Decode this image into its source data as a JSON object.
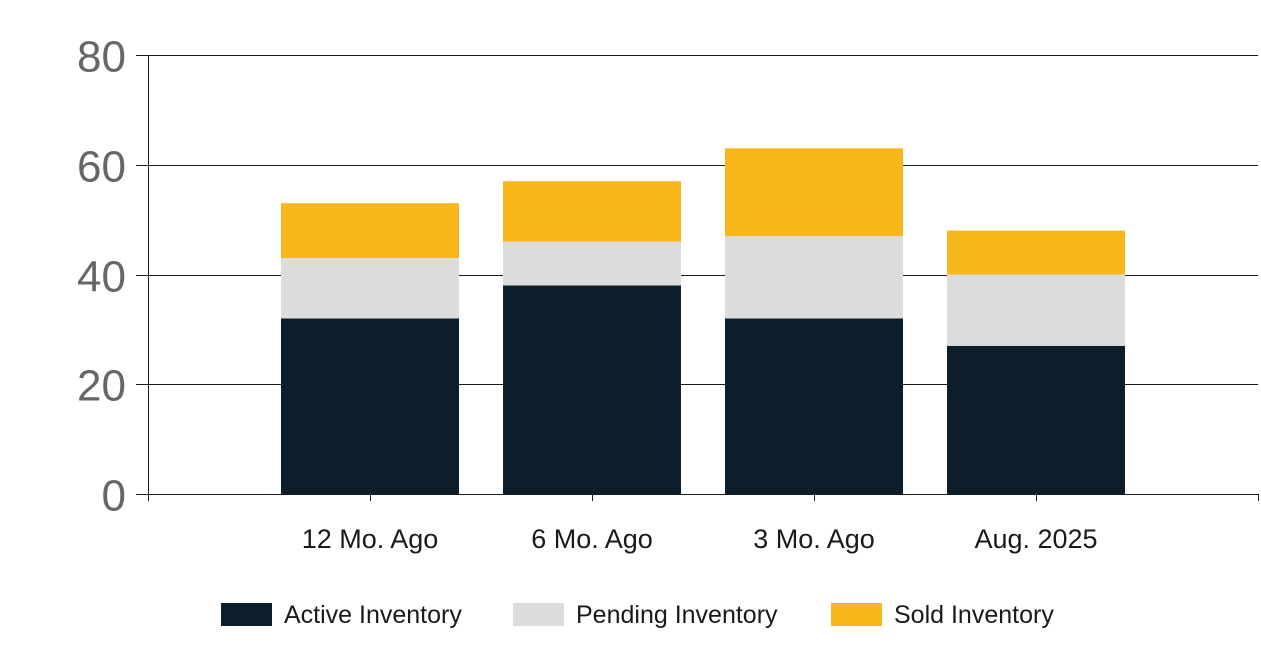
{
  "chart_data": {
    "type": "bar",
    "stacked": true,
    "categories": [
      "12 Mo. Ago",
      "6 Mo. Ago",
      "3 Mo. Ago",
      "Aug. 2025"
    ],
    "series": [
      {
        "name": "Active Inventory",
        "values": [
          32,
          38,
          32,
          27
        ],
        "color": "#0c1e29"
      },
      {
        "name": "Pending Inventory",
        "values": [
          11,
          8,
          15,
          13
        ],
        "color": "#dcdcdc"
      },
      {
        "name": "Sold Inventory",
        "values": [
          10,
          11,
          16,
          8
        ],
        "color": "#f8b81c"
      }
    ],
    "ylim": [
      0,
      80
    ],
    "yticks": [
      0,
      20,
      40,
      60,
      80
    ],
    "grid": true,
    "legend_position": "bottom"
  }
}
